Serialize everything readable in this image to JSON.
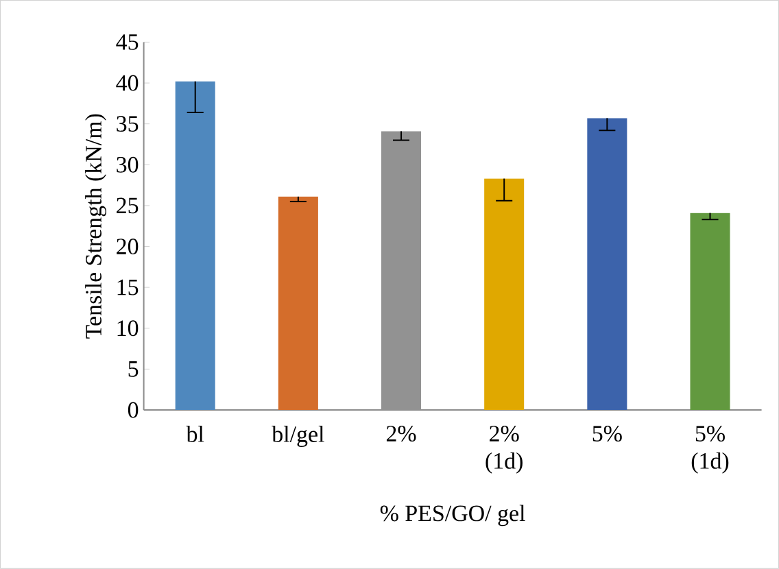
{
  "chart_data": {
    "type": "bar",
    "xlabel": "% PES/GO/ gel",
    "ylabel": "Tensile Strength (kN/m)",
    "categories": [
      "bl",
      "bl/gel",
      "2%",
      "2% (1d)",
      "5%",
      "5% (1d)"
    ],
    "values": [
      40.2,
      26.1,
      34.1,
      28.3,
      35.7,
      24.1
    ],
    "colors": [
      "#4f88be",
      "#d46d2b",
      "#929292",
      "#e0a800",
      "#3c63ab",
      "#62993f"
    ],
    "errors": [
      [
        36.4,
        40.2
      ],
      [
        25.5,
        26.1
      ],
      [
        33.0,
        34.1
      ],
      [
        25.6,
        28.3
      ],
      [
        34.2,
        35.7
      ],
      [
        23.3,
        24.1
      ]
    ],
    "ylim": [
      0,
      45
    ],
    "yticks": [
      0,
      5,
      10,
      15,
      20,
      25,
      30,
      35,
      40,
      45
    ]
  }
}
